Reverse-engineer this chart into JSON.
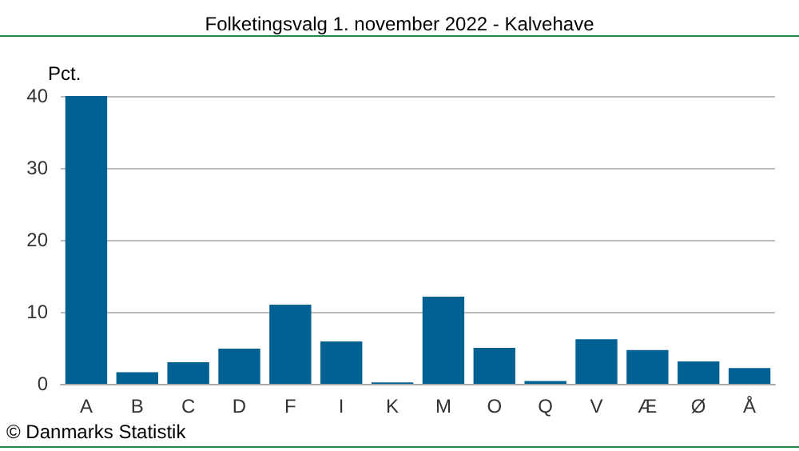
{
  "chart_data": {
    "type": "bar",
    "title": "Folketingsvalg 1. november 2022 - Kalvehave",
    "ylabel": "Pct.",
    "categories": [
      "A",
      "B",
      "C",
      "D",
      "F",
      "I",
      "K",
      "M",
      "O",
      "Q",
      "V",
      "Æ",
      "Ø",
      "Å"
    ],
    "values": [
      40.0,
      1.6,
      3.0,
      4.9,
      11.0,
      5.9,
      0.2,
      12.1,
      5.0,
      0.4,
      6.2,
      4.7,
      3.1,
      2.2
    ],
    "color": "#006192",
    "ylim": [
      0,
      40
    ],
    "yticks": [
      0,
      10,
      20,
      30,
      40
    ],
    "grid": "y",
    "annotations": [
      "© Danmarks Statistik"
    ]
  }
}
